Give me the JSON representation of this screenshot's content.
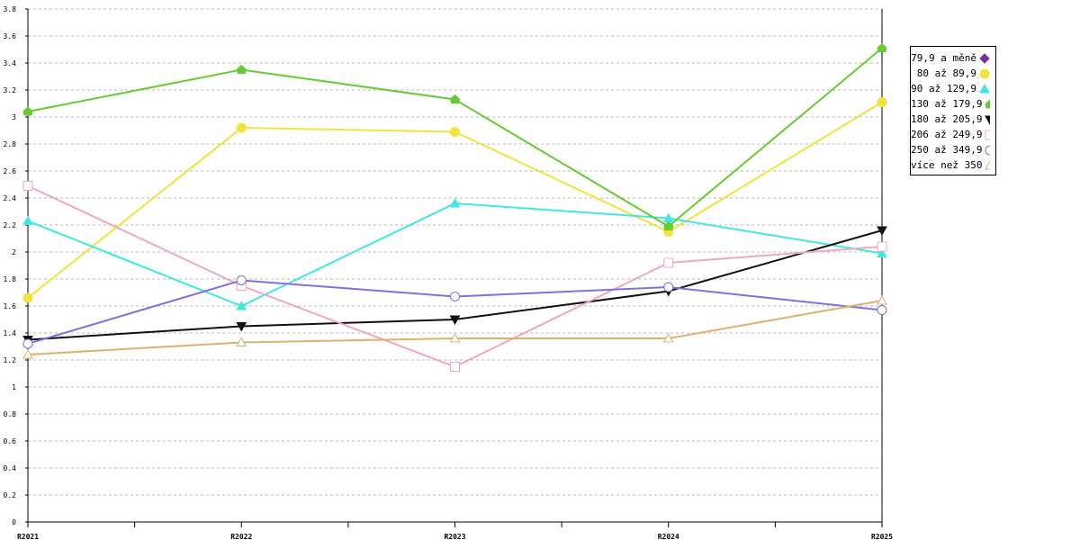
{
  "chart_data": {
    "type": "line",
    "categories": [
      "R2021",
      "R2022",
      "R2023",
      "R2024",
      "R2025"
    ],
    "ylim": [
      0,
      3.8
    ],
    "yticks": [
      "0",
      "0.2",
      "0.4",
      "0.6",
      "0.8",
      "1",
      "1.2",
      "1.4",
      "1.6",
      "1.8",
      "2",
      "2.2",
      "2.4",
      "2.6",
      "2.8",
      "3",
      "3.2",
      "3.4",
      "3.6",
      "3.8"
    ],
    "grid": true,
    "legend_position": "top-right",
    "series": [
      {
        "name": "79,9 a měně",
        "color": "#7b2d9b",
        "marker": "diamond",
        "filled": true,
        "values": [
          null,
          null,
          null,
          null,
          null
        ]
      },
      {
        "name": "80 až 89,9",
        "color": "#f0e43a",
        "marker": "circle",
        "filled": true,
        "values": [
          1.66,
          2.92,
          2.89,
          2.15,
          3.11
        ]
      },
      {
        "name": "90 až 129,9",
        "color": "#40e8e0",
        "marker": "triangle-up",
        "filled": true,
        "values": [
          2.23,
          1.6,
          2.36,
          2.25,
          1.99
        ]
      },
      {
        "name": "130 až 179,9",
        "color": "#66cc33",
        "marker": "house",
        "filled": true,
        "values": [
          3.04,
          3.35,
          3.13,
          2.19,
          3.51
        ]
      },
      {
        "name": "180 až 205,9",
        "color": "#111111",
        "marker": "triangle-down",
        "filled": true,
        "values": [
          1.35,
          1.45,
          1.5,
          1.71,
          2.16
        ]
      },
      {
        "name": "206 až 249,9",
        "color": "#f0a8c0",
        "marker": "square",
        "filled": false,
        "values": [
          2.49,
          1.75,
          1.15,
          1.92,
          2.04
        ]
      },
      {
        "name": "250 až 349,9",
        "color": "#8070e0",
        "marker": "circle",
        "filled": false,
        "values": [
          1.32,
          1.79,
          1.67,
          1.74,
          1.57
        ]
      },
      {
        "name": "více než 350",
        "color": "#e0b070",
        "marker": "triangle-up",
        "filled": false,
        "values": [
          1.24,
          1.33,
          1.36,
          1.36,
          1.64
        ]
      }
    ]
  }
}
